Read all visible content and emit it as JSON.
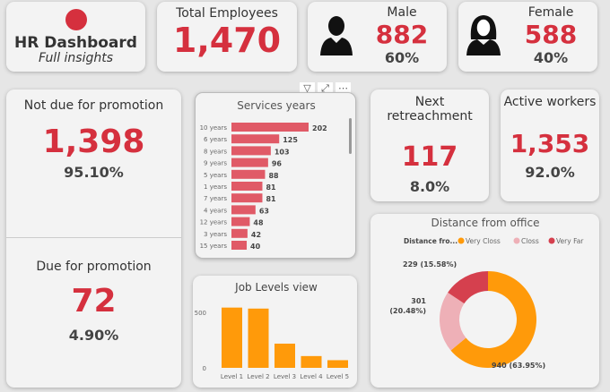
{
  "header": {
    "title": "HR Dashboard",
    "subtitle": "Full insights",
    "logo_color": "#d5303e"
  },
  "total": {
    "label": "Total Employees",
    "value": "1,470"
  },
  "male": {
    "label": "Male",
    "value": "882",
    "pct": "60%",
    "icon": "male-person-icon"
  },
  "female": {
    "label": "Female",
    "value": "588",
    "pct": "40%",
    "icon": "female-person-icon"
  },
  "not_due": {
    "label": "Not due for promotion",
    "value": "1,398",
    "pct": "95.10%"
  },
  "due": {
    "label": "Due for promotion",
    "value": "72",
    "pct": "4.90%"
  },
  "retreat": {
    "label": "Next retreachment",
    "value": "117",
    "pct": "8.0%"
  },
  "active": {
    "label": "Active workers",
    "value": "1,353",
    "pct": "92.0%"
  },
  "visual_header": {
    "icons": [
      "filter-icon",
      "focus-mode-icon",
      "more-options-icon"
    ]
  },
  "chart_data": [
    {
      "type": "bar",
      "orientation": "horizontal",
      "title": "Services years",
      "categories": [
        "10 years",
        "6 years",
        "8 years",
        "9 years",
        "5 years",
        "1 years",
        "7 years",
        "4 years",
        "12 years",
        "3 years",
        "15 years"
      ],
      "values": [
        202,
        125,
        103,
        96,
        88,
        81,
        81,
        63,
        48,
        42,
        40
      ],
      "color": "#e05a67"
    },
    {
      "type": "bar",
      "title": "Job Levels view",
      "categories": [
        "Level 1",
        "Level 2",
        "Level 3",
        "Level 4",
        "Level 5"
      ],
      "values": [
        543,
        534,
        218,
        106,
        69
      ],
      "yticks": [
        "0",
        "500"
      ],
      "ylim": [
        0,
        600
      ],
      "color": "#ff9a0a"
    },
    {
      "type": "pie",
      "donut": true,
      "title": "Distance from office",
      "legend_title": "Distance fro...",
      "legend_position": "top",
      "slices": [
        {
          "name": "Very Closs",
          "value": 940,
          "label": "940 (63.95%)",
          "color": "#ff9a0a"
        },
        {
          "name": "Closs",
          "value": 301,
          "label": "301 (20.48%)",
          "color": "#eeb0b7"
        },
        {
          "name": "Very Far",
          "value": 229,
          "label": "229 (15.58%)",
          "color": "#d5404e"
        }
      ]
    }
  ]
}
